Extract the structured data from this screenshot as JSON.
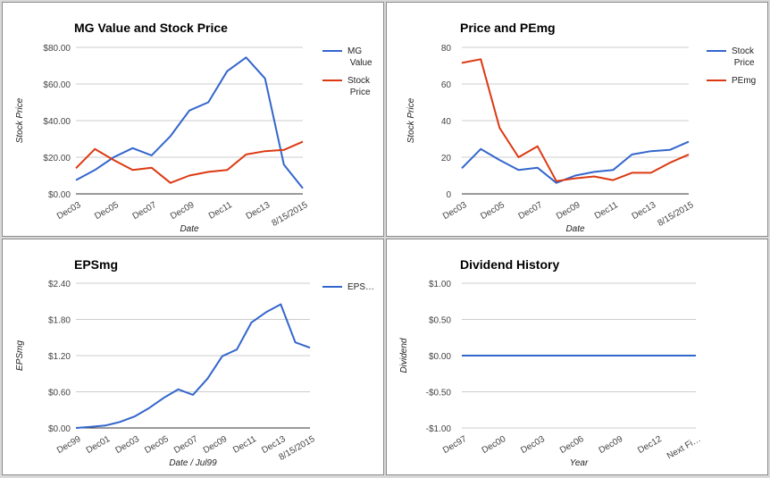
{
  "chart_data": [
    {
      "type": "line",
      "title": "MG Value and Stock Price",
      "xlabel": "Date",
      "ylabel": "Stock Price",
      "ylim": [
        0,
        80
      ],
      "yticks": [
        "$80.00",
        "$60.00",
        "$40.00",
        "$20.00",
        "$0.00"
      ],
      "xticks": [
        "Dec03",
        "Dec05",
        "Dec07",
        "Dec09",
        "Dec11",
        "Dec13",
        "8/15/2015"
      ],
      "x": [
        "Dec03",
        "Dec04",
        "Dec05",
        "Dec06",
        "Dec07",
        "Dec08",
        "Dec09",
        "Dec10",
        "Dec11",
        "Dec12",
        "Dec13",
        "Dec14",
        "8/15/2015"
      ],
      "series": [
        {
          "name": "MG Value",
          "color": "#3366cc",
          "values": [
            7.5,
            13,
            20,
            25,
            21,
            31.5,
            45.5,
            50,
            67,
            74.5,
            63,
            16,
            3
          ]
        },
        {
          "name": "Stock Price",
          "color": "#dc3912",
          "values": [
            14,
            24.5,
            18.5,
            13,
            14.3,
            6,
            10,
            12,
            13,
            21.5,
            23.3,
            24,
            28.5
          ]
        }
      ],
      "legend": "right",
      "grid": true
    },
    {
      "type": "line",
      "title": "Price and PEmg",
      "xlabel": "Date",
      "ylabel": "Stock Price",
      "ylim": [
        0,
        80
      ],
      "yticks": [
        "80",
        "60",
        "40",
        "20",
        "0"
      ],
      "xticks": [
        "Dec03",
        "Dec05",
        "Dec07",
        "Dec09",
        "Dec11",
        "Dec13",
        "8/15/2015"
      ],
      "x": [
        "Dec03",
        "Dec04",
        "Dec05",
        "Dec06",
        "Dec07",
        "Dec08",
        "Dec09",
        "Dec10",
        "Dec11",
        "Dec12",
        "Dec13",
        "Dec14",
        "8/15/2015"
      ],
      "series": [
        {
          "name": "Stock Price",
          "color": "#3366cc",
          "values": [
            14,
            24.5,
            18.5,
            13,
            14.3,
            6,
            10,
            12,
            13,
            21.5,
            23.3,
            24,
            28.5
          ]
        },
        {
          "name": "PEmg",
          "color": "#dc3912",
          "values": [
            71.5,
            73.5,
            36,
            20,
            26,
            7,
            8.5,
            9.5,
            7.5,
            11.5,
            11.5,
            17,
            21.5
          ]
        }
      ],
      "legend": "right",
      "grid": true
    },
    {
      "type": "line",
      "title": "EPSmg",
      "xlabel": "Date / Jul99",
      "ylabel": "EPSmg",
      "ylim": [
        0,
        2.4
      ],
      "yticks": [
        "$2.40",
        "$1.80",
        "$1.20",
        "$0.60",
        "$0.00"
      ],
      "xticks": [
        "Dec99",
        "Dec01",
        "Dec03",
        "Dec05",
        "Dec07",
        "Dec09",
        "Dec11",
        "Dec13",
        "8/15/2015"
      ],
      "x": [
        "Dec99",
        "Dec00",
        "Dec01",
        "Dec02",
        "Dec03",
        "Dec04",
        "Dec05",
        "Dec06",
        "Dec07",
        "Dec08",
        "Dec09",
        "Dec10",
        "Dec11",
        "Dec12",
        "Dec13",
        "Dec14",
        "8/15/2015"
      ],
      "series": [
        {
          "name": "EPS…",
          "color": "#3366cc",
          "values": [
            0,
            0.02,
            0.04,
            0.1,
            0.19,
            0.33,
            0.5,
            0.64,
            0.55,
            0.82,
            1.19,
            1.3,
            1.75,
            1.92,
            2.05,
            1.42,
            1.33
          ]
        }
      ],
      "legend": "right",
      "grid": true
    },
    {
      "type": "line",
      "title": "Dividend History",
      "xlabel": "Year",
      "ylabel": "Dividend",
      "ylim": [
        -1,
        1
      ],
      "yticks": [
        "$1.00",
        "$0.50",
        "$0.00",
        "-$0.50",
        "-$1.00"
      ],
      "xticks": [
        "Dec97",
        "Dec00",
        "Dec03",
        "Dec06",
        "Dec09",
        "Dec12",
        "Next Fi…"
      ],
      "x": [
        "Dec97",
        "Dec98",
        "Dec99",
        "Dec00",
        "Dec01",
        "Dec02",
        "Dec03",
        "Dec04",
        "Dec05",
        "Dec06",
        "Dec07",
        "Dec08",
        "Dec09",
        "Dec10",
        "Dec11",
        "Dec12",
        "Dec13",
        "Dec14",
        "Next Fi…"
      ],
      "series": [
        {
          "name": "",
          "color": "#3366cc",
          "values": [
            0,
            0,
            0,
            0,
            0,
            0,
            0,
            0,
            0,
            0,
            0,
            0,
            0,
            0,
            0,
            0,
            0,
            0,
            0
          ]
        }
      ],
      "legend": "none",
      "grid": true
    }
  ]
}
